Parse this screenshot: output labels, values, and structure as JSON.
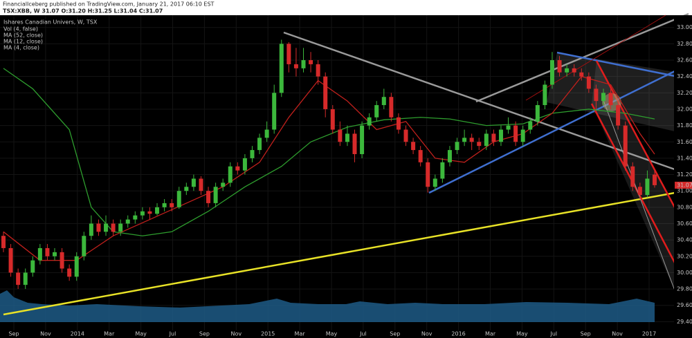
{
  "header": {
    "publisher": "FinancialIceberg published on TradingView.com, January 21, 2017 06:10 EST",
    "symbol_line": "TSX:XBB, W  31.07  O:31.20  H:31.25  L:31.04  C:31.07"
  },
  "chart_data": {
    "type": "candlestick",
    "title": "Ishares Canadian Univers, W, TSX",
    "indicators": [
      "Vol (4, false)",
      "MA (52, close)",
      "MA (12, close)",
      "MA (4, close)"
    ],
    "up_color": "#3cb83c",
    "down_color": "#d62a2a",
    "ylim": [
      29.2,
      33.15
    ],
    "yticks": [
      {
        "value": 29.4,
        "label": "29.40"
      },
      {
        "value": 29.6,
        "label": "29.60"
      },
      {
        "value": 29.8,
        "label": "29.80"
      },
      {
        "value": 30.0,
        "label": "30.00"
      },
      {
        "value": 30.2,
        "label": "30.20"
      },
      {
        "value": 30.4,
        "label": "30.40"
      },
      {
        "value": 30.6,
        "label": "30.60"
      },
      {
        "value": 30.8,
        "label": "30.80"
      },
      {
        "value": 31.0,
        "label": "31.00"
      },
      {
        "value": 31.2,
        "label": "31.20"
      },
      {
        "value": 31.4,
        "label": "31.40"
      },
      {
        "value": 31.6,
        "label": "31.60"
      },
      {
        "value": 31.8,
        "label": "31.80"
      },
      {
        "value": 32.0,
        "label": "32.00"
      },
      {
        "value": 32.2,
        "label": "32.20"
      },
      {
        "value": 32.4,
        "label": "32.40"
      },
      {
        "value": 32.6,
        "label": "32.60"
      },
      {
        "value": 32.8,
        "label": "32.80"
      },
      {
        "value": 33.0,
        "label": "33.00"
      }
    ],
    "x_labels": [
      "Sep",
      "Nov",
      "2014",
      "Mar",
      "May",
      "Jul",
      "Sep",
      "Nov",
      "2015",
      "Mar",
      "May",
      "Jul",
      "Sep",
      "Nov",
      "2016",
      "Mar",
      "May",
      "Jul",
      "Sep",
      "Nov",
      "2017"
    ],
    "last_price": 31.07,
    "candles": [
      [
        30.45,
        30.5,
        30.25,
        30.3
      ],
      [
        30.3,
        30.35,
        29.95,
        30.0
      ],
      [
        30.0,
        30.05,
        29.8,
        29.85
      ],
      [
        29.85,
        30.05,
        29.8,
        30.0
      ],
      [
        30.0,
        30.2,
        29.95,
        30.15
      ],
      [
        30.15,
        30.35,
        30.1,
        30.3
      ],
      [
        30.3,
        30.35,
        30.15,
        30.2
      ],
      [
        30.2,
        30.3,
        30.15,
        30.25
      ],
      [
        30.25,
        30.3,
        30.0,
        30.05
      ],
      [
        30.05,
        30.1,
        29.9,
        29.95
      ],
      [
        29.95,
        30.25,
        29.9,
        30.2
      ],
      [
        30.2,
        30.5,
        30.15,
        30.45
      ],
      [
        30.45,
        30.7,
        30.4,
        30.6
      ],
      [
        30.6,
        30.65,
        30.45,
        30.5
      ],
      [
        30.5,
        30.7,
        30.45,
        30.6
      ],
      [
        30.6,
        30.65,
        30.45,
        30.5
      ],
      [
        30.5,
        30.65,
        30.45,
        30.6
      ],
      [
        30.6,
        30.7,
        30.55,
        30.65
      ],
      [
        30.65,
        30.75,
        30.6,
        30.7
      ],
      [
        30.7,
        30.8,
        30.65,
        30.75
      ],
      [
        30.75,
        30.8,
        30.65,
        30.72
      ],
      [
        30.72,
        30.85,
        30.7,
        30.8
      ],
      [
        30.8,
        30.9,
        30.75,
        30.85
      ],
      [
        30.85,
        30.9,
        30.75,
        30.8
      ],
      [
        30.8,
        31.05,
        30.78,
        31.0
      ],
      [
        31.0,
        31.1,
        30.95,
        31.05
      ],
      [
        31.05,
        31.2,
        31.0,
        31.15
      ],
      [
        31.15,
        31.18,
        30.95,
        31.0
      ],
      [
        31.0,
        31.05,
        30.8,
        30.85
      ],
      [
        30.85,
        31.1,
        30.8,
        31.05
      ],
      [
        31.05,
        31.15,
        31.0,
        31.1
      ],
      [
        31.1,
        31.35,
        31.05,
        31.3
      ],
      [
        31.3,
        31.35,
        31.2,
        31.25
      ],
      [
        31.25,
        31.45,
        31.2,
        31.4
      ],
      [
        31.4,
        31.55,
        31.35,
        31.5
      ],
      [
        31.5,
        31.7,
        31.45,
        31.65
      ],
      [
        31.65,
        31.85,
        31.6,
        31.75
      ],
      [
        31.75,
        32.3,
        31.7,
        32.2
      ],
      [
        32.2,
        32.85,
        32.15,
        32.8
      ],
      [
        32.8,
        32.82,
        32.45,
        32.55
      ],
      [
        32.55,
        32.75,
        32.4,
        32.5
      ],
      [
        32.5,
        32.75,
        32.45,
        32.6
      ],
      [
        32.6,
        32.7,
        32.45,
        32.55
      ],
      [
        32.55,
        32.6,
        32.3,
        32.4
      ],
      [
        32.4,
        32.45,
        31.9,
        32.0
      ],
      [
        32.0,
        32.05,
        31.7,
        31.75
      ],
      [
        31.75,
        31.85,
        31.55,
        31.6
      ],
      [
        31.6,
        31.8,
        31.55,
        31.7
      ],
      [
        31.7,
        31.75,
        31.35,
        31.45
      ],
      [
        31.45,
        31.85,
        31.4,
        31.8
      ],
      [
        31.8,
        31.95,
        31.75,
        31.9
      ],
      [
        31.9,
        32.1,
        31.85,
        32.05
      ],
      [
        32.05,
        32.25,
        32.0,
        32.15
      ],
      [
        32.15,
        32.2,
        31.85,
        31.9
      ],
      [
        31.9,
        31.95,
        31.7,
        31.75
      ],
      [
        31.75,
        31.8,
        31.55,
        31.6
      ],
      [
        31.6,
        31.65,
        31.45,
        31.5
      ],
      [
        31.5,
        31.55,
        31.3,
        31.35
      ],
      [
        31.35,
        31.4,
        30.98,
        31.05
      ],
      [
        31.05,
        31.2,
        31.0,
        31.15
      ],
      [
        31.15,
        31.4,
        31.1,
        31.35
      ],
      [
        31.35,
        31.55,
        31.3,
        31.5
      ],
      [
        31.5,
        31.65,
        31.45,
        31.6
      ],
      [
        31.6,
        31.75,
        31.55,
        31.65
      ],
      [
        31.65,
        31.7,
        31.5,
        31.6
      ],
      [
        31.6,
        31.65,
        31.5,
        31.55
      ],
      [
        31.55,
        31.75,
        31.5,
        31.7
      ],
      [
        31.7,
        31.75,
        31.55,
        31.6
      ],
      [
        31.6,
        31.8,
        31.55,
        31.75
      ],
      [
        31.75,
        31.9,
        31.7,
        31.8
      ],
      [
        31.8,
        31.85,
        31.55,
        31.6
      ],
      [
        31.6,
        31.8,
        31.55,
        31.75
      ],
      [
        31.75,
        31.9,
        31.7,
        31.85
      ],
      [
        31.85,
        32.1,
        31.8,
        32.05
      ],
      [
        32.05,
        32.35,
        32.0,
        32.3
      ],
      [
        32.3,
        32.7,
        32.25,
        32.6
      ],
      [
        32.6,
        32.65,
        32.4,
        32.45
      ],
      [
        32.45,
        32.55,
        32.4,
        32.5
      ],
      [
        32.5,
        32.55,
        32.4,
        32.45
      ],
      [
        32.45,
        32.5,
        32.35,
        32.4
      ],
      [
        32.4,
        32.45,
        32.2,
        32.25
      ],
      [
        32.25,
        32.3,
        32.0,
        32.1
      ],
      [
        32.1,
        32.25,
        32.05,
        32.2
      ],
      [
        32.2,
        32.25,
        32.0,
        32.05
      ],
      [
        32.05,
        32.1,
        31.75,
        31.8
      ],
      [
        31.8,
        31.85,
        31.25,
        31.3
      ],
      [
        31.3,
        31.35,
        31.0,
        31.05
      ],
      [
        31.05,
        31.1,
        30.9,
        30.95
      ],
      [
        30.95,
        31.25,
        30.92,
        31.15
      ],
      [
        31.2,
        31.25,
        31.04,
        31.07
      ]
    ],
    "series": [
      {
        "name": "MA (52, close)",
        "color": "#2e9e2e",
        "x": [
          0,
          4,
          9,
          12,
          15,
          19,
          23,
          28,
          33,
          38,
          42,
          47,
          52,
          57,
          61,
          66,
          71,
          75,
          80,
          85,
          89
        ],
        "values": [
          32.5,
          32.25,
          31.75,
          30.8,
          30.5,
          30.45,
          30.5,
          30.75,
          31.05,
          31.3,
          31.6,
          31.78,
          31.87,
          31.9,
          31.88,
          31.8,
          31.82,
          31.95,
          32.0,
          31.95,
          31.88
        ]
      },
      {
        "name": "MA (12, close)",
        "color": "#c0201c",
        "x": [
          0,
          5,
          10,
          15,
          20,
          25,
          30,
          35,
          39,
          43,
          47,
          51,
          55,
          59,
          63,
          67,
          71,
          75,
          79,
          83,
          87,
          89
        ],
        "values": [
          30.5,
          30.15,
          30.15,
          30.45,
          30.65,
          30.85,
          31.05,
          31.35,
          31.9,
          32.35,
          32.1,
          31.75,
          31.85,
          31.4,
          31.35,
          31.6,
          31.7,
          31.95,
          32.4,
          32.3,
          31.7,
          31.45
        ]
      }
    ]
  }
}
